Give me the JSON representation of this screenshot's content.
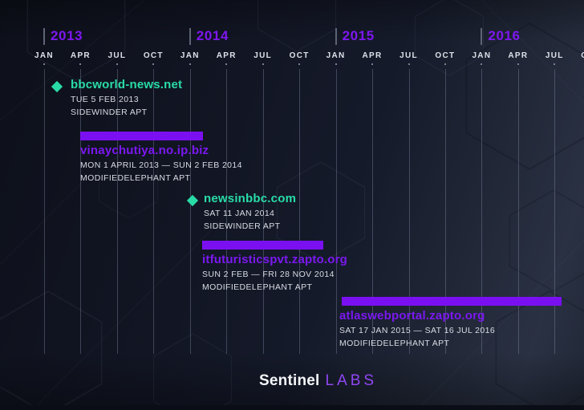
{
  "colors": {
    "accent_purple": "#7a10f2",
    "accent_teal": "#29dca7",
    "year_label_purple": "#7e17ef",
    "background_dark": "#121624",
    "meta_text": "#d9dce4"
  },
  "chart_data": {
    "type": "bar",
    "variant": "gantt-timeline",
    "title": "",
    "x_axis": {
      "years": [
        "2013",
        "2014",
        "2015",
        "2016"
      ],
      "quarter_tick_labels": [
        "JAN",
        "APR",
        "JUL",
        "OCT"
      ],
      "range_start": "JAN 2013",
      "range_end": "OCT 2016",
      "grid": true
    },
    "events": [
      {
        "domain": "bbcworld-news.net",
        "marker": "point",
        "date_label": "TUE 5 FEB 2013",
        "start": "2013-02-05",
        "end": null,
        "apt": "SIDEWINDER APT",
        "color": "#29dca7"
      },
      {
        "domain": "vinaychutiya.no.ip.biz",
        "marker": "range",
        "date_label": "MON 1 APRIL 2013 — SUN 2 FEB 2014",
        "start": "2013-04-01",
        "end": "2014-02-02",
        "apt": "MODIFIEDELEPHANT APT",
        "color": "#7a10f2"
      },
      {
        "domain": "newsinbbc.com",
        "marker": "point",
        "date_label": "SAT 11 JAN 2014",
        "start": "2014-01-11",
        "end": null,
        "apt": "SIDEWINDER APT",
        "color": "#29dca7"
      },
      {
        "domain": "itfuturisticspvt.zapto.org",
        "marker": "range",
        "date_label": "SUN 2 FEB — FRI 28 NOV 2014",
        "start": "2014-02-02",
        "end": "2014-11-28",
        "apt": "MODIFIEDELEPHANT APT",
        "color": "#7a10f2"
      },
      {
        "domain": "atlaswebportal.zapto.org",
        "marker": "range",
        "date_label": "SAT 17 JAN 2015 — SAT 16 JUL 2016",
        "start": "2015-01-17",
        "end": "2016-07-16",
        "apt": "MODIFIEDELEPHANT APT",
        "color": "#7a10f2"
      }
    ]
  },
  "footer": {
    "brand": "Sentinel",
    "suffix": "LABS"
  }
}
